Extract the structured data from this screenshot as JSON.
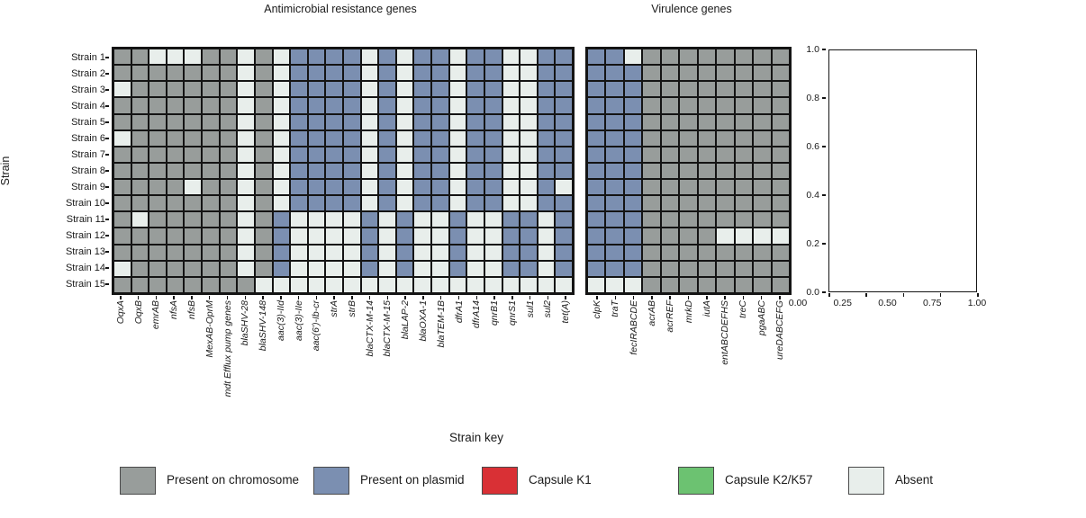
{
  "titles": {
    "amr": "Antimicrobial resistance genes",
    "virulence": "Virulence genes"
  },
  "y_axis_label": "Strain",
  "colors": {
    "C": "#989d9b",
    "P": "#7b8fb1",
    "A": "#e8eeeb",
    "K1": "#d93035",
    "K2": "#6cc271",
    "grid_line": "#141414"
  },
  "legend": {
    "title": "Strain key",
    "entries": [
      {
        "label": "Present on chromosome",
        "key": "C"
      },
      {
        "label": "Present on plasmid",
        "key": "P"
      },
      {
        "label": "Capsule K1",
        "key": "K1"
      },
      {
        "label": "Capsule K2/K57",
        "key": "K2"
      },
      {
        "label": "Absent",
        "key": "A"
      }
    ]
  },
  "chart_data": [
    {
      "type": "heatmap",
      "title": "Antimicrobial resistance genes",
      "ylabel": "Strain",
      "legend_position": "bottom",
      "grid": true,
      "value_legend": {
        "C": "Present on chromosome",
        "P": "Present on plasmid",
        "A": "Absent"
      },
      "rows": [
        "Strain 1",
        "Strain 2",
        "Strain 3",
        "Strain 4",
        "Strain 5",
        "Strain 6",
        "Strain 7",
        "Strain 8",
        "Strain 9",
        "Strain 10",
        "Strain 11",
        "Strain 12",
        "Strain 13",
        "Strain 14",
        "Strain 15"
      ],
      "columns": [
        "OqxA",
        "OqxB",
        "emrAB",
        "nfsA",
        "nfsB",
        "MexAB-OprM",
        "mdt Efflux pump genes",
        "blaSHV-28",
        "blaSHV-148",
        "aac(3)-IId",
        "aac(3)-IIe",
        "aac(6')-Ib-cr",
        "strA",
        "strB",
        "blaCTX-M-14",
        "blaCTX-M-15",
        "blaLAP-2",
        "blaOXA-1",
        "blaTEM-1B",
        "dfrA1",
        "dfrA14",
        "qnrB1",
        "qnrS1",
        "sul1",
        "sul2",
        "tet(A)"
      ],
      "values": [
        "CCAAACCACAPPPPAPAPPAPPAAPP",
        "CCCCCCCACAPPPPAPAPPAPPAAPP",
        "ACCCCCCACAPPPPAPAPPAPPAAPP",
        "CCCCCCCACAPPPPAPAPPAPPAAPP",
        "CCCCCCCACAPPPPAPAPPAPPAAPP",
        "ACCCCCCACAPPPPAPAPPAPPAAPP",
        "CCCCCCCACAPPPPAPAPPAPPAAPP",
        "CCCCCCCACAPPPPAPAPPAPPAAPP",
        "CCCCACCACAPPPPAPAPPAPPAAPA",
        "CCCCCCCACAPPPPAPAPPAPPAAPP",
        "CACCCCCACPAAAAPAPAAPAAPPAP",
        "CCCCCCCACPAAAAPAPAAPAAPPAP",
        "CCCCCCCACPAAAAPAPAAPAAPPAP",
        "ACCCCCCACPAAAAPAPAAPAAPPAP",
        "CCCCCCCCAAAAAAAAAAAAAAAAAA"
      ]
    },
    {
      "type": "heatmap",
      "title": "Virulence genes",
      "grid": true,
      "value_legend": {
        "C": "Present on chromosome",
        "P": "Present on plasmid",
        "A": "Absent"
      },
      "rows": [
        "Strain 1",
        "Strain 2",
        "Strain 3",
        "Strain 4",
        "Strain 5",
        "Strain 6",
        "Strain 7",
        "Strain 8",
        "Strain 9",
        "Strain 10",
        "Strain 11",
        "Strain 12",
        "Strain 13",
        "Strain 14",
        "Strain 15"
      ],
      "columns": [
        "clpK",
        "traT",
        "fecIRABCDE",
        "acrAB",
        "acrREF",
        "mrkD",
        "iutA",
        "entABCDEFHS",
        "treC",
        "pgaABC",
        "ureDABCEFG"
      ],
      "values": [
        "PPACCCCCCCC",
        "PPPCCCCCCCC",
        "PPPCCCCCCCC",
        "PPPCCCCCCCC",
        "PPPCCCCCCCC",
        "PPPCCCCCCCC",
        "PPPCCCCCCCC",
        "PPPCCCCCCCC",
        "PPPCCCCCCCC",
        "PPPCCCCCCCC",
        "PPPCCCCCCCC",
        "PPPCCCCAAAA",
        "PPPCCCCCCCC",
        "PPPCCCCCCCC",
        "AAACCCCCCCC"
      ]
    },
    {
      "type": "empty_axes",
      "x_ticks": [
        "0.00",
        "0.25",
        "0.50",
        "0.75",
        "1.00"
      ],
      "y_ticks": [
        "1.0",
        "0.8",
        "0.6",
        "0.4",
        "0.2",
        "0.0"
      ],
      "xlim": [
        0,
        1
      ],
      "ylim": [
        0,
        1
      ]
    }
  ]
}
